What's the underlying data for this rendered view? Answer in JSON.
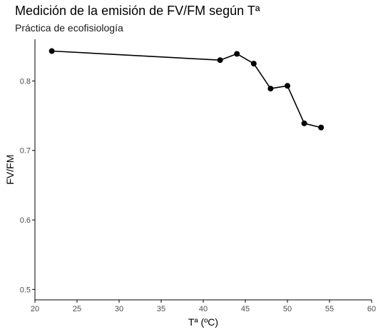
{
  "title": "Medición de la emisión de FV/FM según Tª",
  "subtitle": "Práctica de ecofisiología",
  "chart_data": {
    "type": "line",
    "title": "Medición de la emisión de FV/FM según Tª",
    "subtitle": "Práctica de ecofisiología",
    "xlabel": "Tª (ºC)",
    "ylabel": "FV/FM",
    "xlim": [
      20,
      60
    ],
    "ylim": [
      0.485,
      0.86
    ],
    "x_ticks": [
      20,
      25,
      30,
      35,
      40,
      45,
      50,
      55,
      60
    ],
    "y_ticks": [
      0.5,
      0.6,
      0.7,
      0.8
    ],
    "y_tick_labels": [
      "0.5",
      "0.6",
      "0.7",
      "0.8"
    ],
    "grid": false,
    "series": [
      {
        "x": [
          22,
          42,
          44,
          46,
          48,
          50,
          52,
          54
        ],
        "y": [
          0.843,
          0.83,
          0.839,
          0.825,
          0.789,
          0.793,
          0.739,
          0.733
        ]
      }
    ],
    "colors": {
      "line": "#000000",
      "point": "#000000",
      "axis": "#000000",
      "tick_label": "#4d4d4d"
    }
  }
}
